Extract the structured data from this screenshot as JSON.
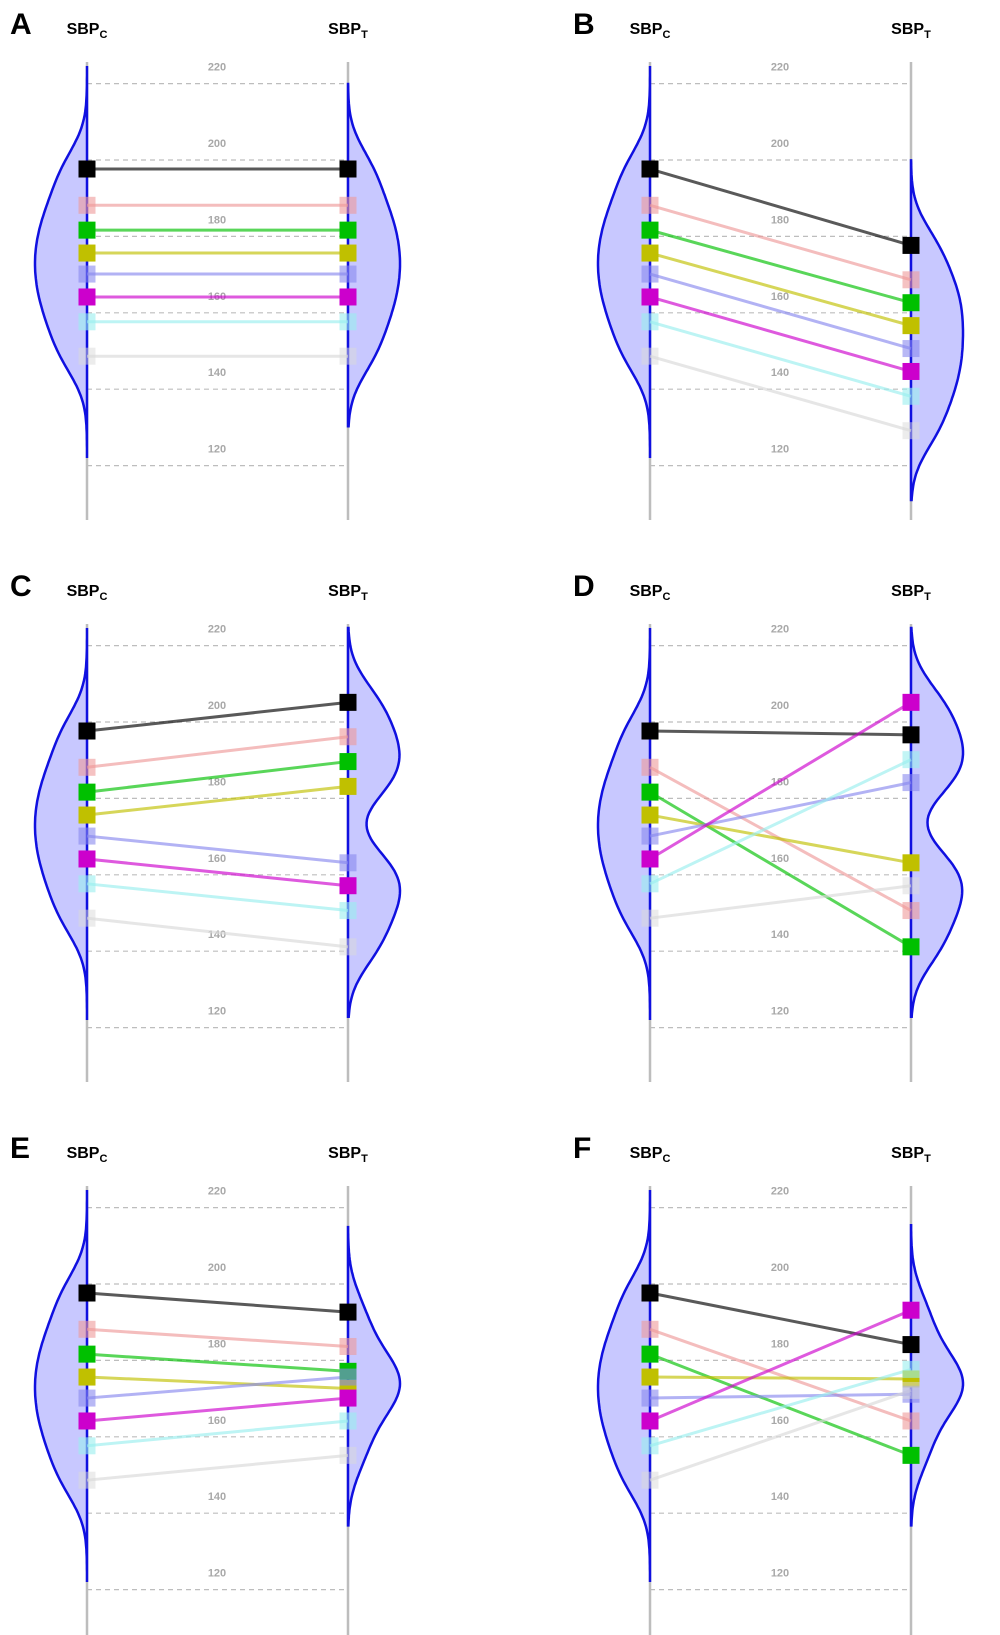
{
  "figure": {
    "colors": {
      "violin_stroke": "#1010e0",
      "violin_fill": "#c8c8ff",
      "axis_line": "#bdbdbd",
      "grid_line": "#bdbdbd",
      "tick_label": "#a8a8a8"
    },
    "subject_colors": [
      "#000000",
      "#ee9999",
      "#00c000",
      "#c0c000",
      "#8888ee",
      "#cc00cc",
      "#99eeee",
      "#d9d9d9"
    ],
    "subject_emphasis": [
      1,
      0.6,
      1,
      1,
      0.6,
      1,
      0.6,
      0.5
    ]
  },
  "chart_data": [
    {
      "panel": "A",
      "type": "line",
      "x_labels": {
        "left": {
          "main": "SBP",
          "sub": "C"
        },
        "right": {
          "main": "SBP",
          "sub": "T"
        }
      },
      "y_ticks": [
        120,
        140,
        160,
        180,
        200,
        220
      ],
      "ylim": [
        111,
        226
      ],
      "grid": true,
      "series": [
        {
          "values": [
            194.5,
            194.5
          ]
        },
        {
          "values": [
            185,
            185
          ]
        },
        {
          "values": [
            178.5,
            178.5
          ]
        },
        {
          "values": [
            172.5,
            172.5
          ]
        },
        {
          "values": [
            167,
            167
          ]
        },
        {
          "values": [
            161,
            161
          ]
        },
        {
          "values": [
            154.5,
            154.5
          ]
        },
        {
          "values": [
            145.5,
            145.5
          ]
        }
      ]
    },
    {
      "panel": "B",
      "type": "line",
      "x_labels": {
        "left": {
          "main": "SBP",
          "sub": "C"
        },
        "right": {
          "main": "SBP",
          "sub": "T"
        }
      },
      "y_ticks": [
        120,
        140,
        160,
        180,
        200,
        220
      ],
      "ylim": [
        111,
        226
      ],
      "grid": true,
      "series": [
        {
          "values": [
            194.5,
            174.5
          ]
        },
        {
          "values": [
            185,
            165.5
          ]
        },
        {
          "values": [
            178.5,
            159.5
          ]
        },
        {
          "values": [
            172.5,
            153.5
          ]
        },
        {
          "values": [
            167,
            147.5
          ]
        },
        {
          "values": [
            161,
            141.5
          ]
        },
        {
          "values": [
            154.5,
            135
          ]
        },
        {
          "values": [
            145.5,
            126
          ]
        }
      ]
    },
    {
      "panel": "C",
      "type": "line",
      "x_labels": {
        "left": {
          "main": "SBP",
          "sub": "C"
        },
        "right": {
          "main": "SBP",
          "sub": "T"
        }
      },
      "y_ticks": [
        120,
        140,
        160,
        180,
        200,
        220
      ],
      "ylim": [
        111,
        226
      ],
      "grid": true,
      "series": [
        {
          "values": [
            194.5,
            202
          ]
        },
        {
          "values": [
            185,
            193
          ]
        },
        {
          "values": [
            178.5,
            186.5
          ]
        },
        {
          "values": [
            172.5,
            180
          ]
        },
        {
          "values": [
            167,
            160
          ]
        },
        {
          "values": [
            161,
            154
          ]
        },
        {
          "values": [
            154.5,
            147.5
          ]
        },
        {
          "values": [
            145.5,
            138
          ]
        }
      ]
    },
    {
      "panel": "D",
      "type": "line",
      "x_labels": {
        "left": {
          "main": "SBP",
          "sub": "C"
        },
        "right": {
          "main": "SBP",
          "sub": "T"
        }
      },
      "y_ticks": [
        120,
        140,
        160,
        180,
        200,
        220
      ],
      "ylim": [
        111,
        226
      ],
      "grid": true,
      "series": [
        {
          "values": [
            194.5,
            193.5
          ]
        },
        {
          "values": [
            185,
            147.5
          ]
        },
        {
          "values": [
            178.5,
            138
          ]
        },
        {
          "values": [
            172.5,
            160
          ]
        },
        {
          "values": [
            167,
            181
          ]
        },
        {
          "values": [
            161,
            202
          ]
        },
        {
          "values": [
            154.5,
            187
          ]
        },
        {
          "values": [
            145.5,
            154
          ]
        }
      ]
    },
    {
      "panel": "E",
      "type": "line",
      "x_labels": {
        "left": {
          "main": "SBP",
          "sub": "C"
        },
        "right": {
          "main": "SBP",
          "sub": "T"
        }
      },
      "y_ticks": [
        120,
        140,
        160,
        180,
        200,
        220
      ],
      "ylim": [
        111,
        226
      ],
      "grid": true,
      "series": [
        {
          "values": [
            194.5,
            189.5
          ]
        },
        {
          "values": [
            185,
            180.5
          ]
        },
        {
          "values": [
            178.5,
            174
          ]
        },
        {
          "values": [
            172.5,
            169.5
          ]
        },
        {
          "values": [
            167,
            172.5
          ]
        },
        {
          "values": [
            161,
            167
          ]
        },
        {
          "values": [
            154.5,
            161
          ]
        },
        {
          "values": [
            145.5,
            152
          ]
        }
      ]
    },
    {
      "panel": "F",
      "type": "line",
      "x_labels": {
        "left": {
          "main": "SBP",
          "sub": "C"
        },
        "right": {
          "main": "SBP",
          "sub": "T"
        }
      },
      "y_ticks": [
        120,
        140,
        160,
        180,
        200,
        220
      ],
      "ylim": [
        111,
        226
      ],
      "grid": true,
      "series": [
        {
          "values": [
            194.5,
            181
          ]
        },
        {
          "values": [
            185,
            161
          ]
        },
        {
          "values": [
            178.5,
            152
          ]
        },
        {
          "values": [
            172.5,
            172
          ]
        },
        {
          "values": [
            167,
            168
          ]
        },
        {
          "values": [
            161,
            190
          ]
        },
        {
          "values": [
            154.5,
            174.5
          ]
        },
        {
          "values": [
            145.5,
            169
          ]
        }
      ]
    }
  ]
}
